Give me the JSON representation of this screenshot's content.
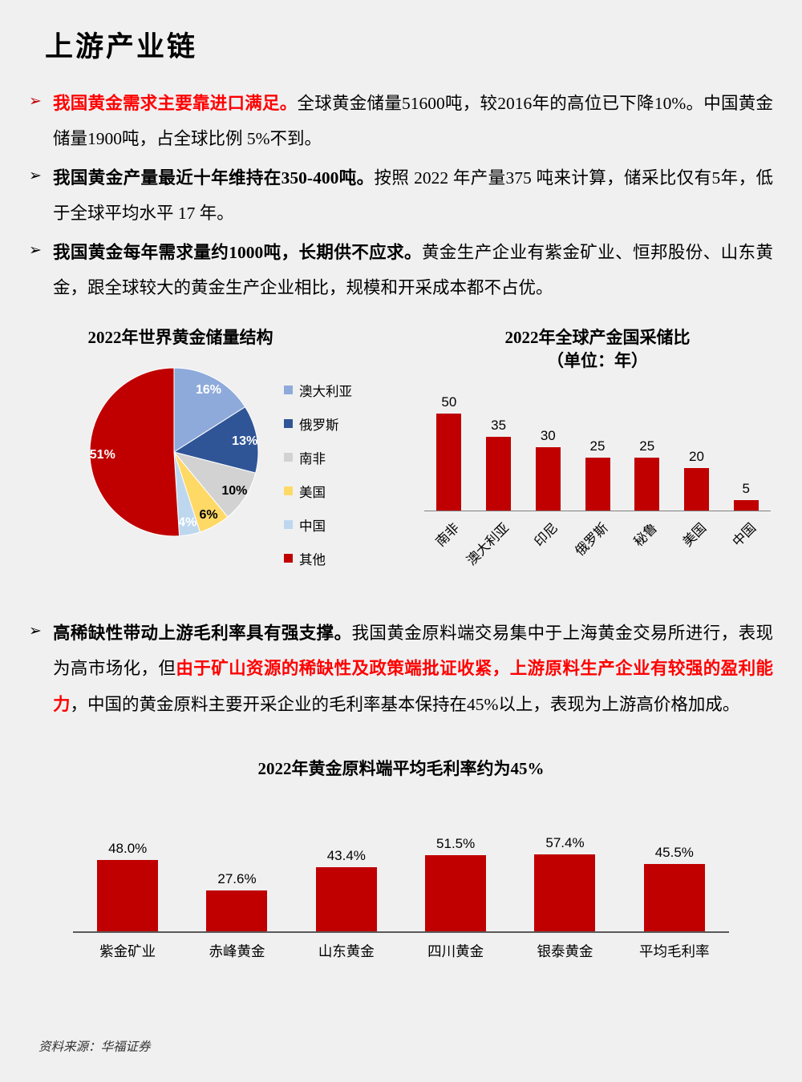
{
  "colors": {
    "page_bg": "#F0F0F1",
    "text": "#000000",
    "red_text": "#FF0000",
    "bar_red": "#C00000"
  },
  "page": {
    "title": "上游产业链",
    "bullet_marker": "➢",
    "source": "资料来源：华福证券"
  },
  "bullets_top": [
    {
      "marker_color": "#C00000",
      "segments": [
        {
          "text": "我国黄金需求主要靠进口满足。",
          "style": "red-bold"
        },
        {
          "text": "全球黄金储量51600吨，较2016年的高位已下降10%。中国黄金储量1900吨，占全球比例 5%不到。",
          "style": "normal"
        }
      ]
    },
    {
      "marker_color": "#000000",
      "segments": [
        {
          "text": "我国黄金产量最近十年维持在350-400吨。",
          "style": "bold"
        },
        {
          "text": "按照 2022 年产量375 吨来计算，储采比仅有5年，低于全球平均水平 17 年。",
          "style": "normal"
        }
      ]
    },
    {
      "marker_color": "#000000",
      "segments": [
        {
          "text": "我国黄金每年需求量约1000吨，长期供不应求。",
          "style": "bold"
        },
        {
          "text": "黄金生产企业有紫金矿业、恒邦股份、山东黄金，跟全球较大的黄金生产企业相比，规模和开采成本都不占优。",
          "style": "normal"
        }
      ]
    }
  ],
  "bullets_bottom": [
    {
      "marker_color": "#000000",
      "segments": [
        {
          "text": "高稀缺性带动上游毛利率具有强支撑。",
          "style": "bold"
        },
        {
          "text": "我国黄金原料端交易集中于上海黄金交易所进行，表现为高市场化，但",
          "style": "normal"
        },
        {
          "text": "由于矿山资源的稀缺性及政策端批证收紧，上游原料生产企业有较强的盈利能力",
          "style": "red-bold"
        },
        {
          "text": "，中国的黄金原料主要开采企业的毛利率基本保持在45%以上，表现为上游高价格加成。",
          "style": "normal"
        }
      ]
    }
  ],
  "chart_data": [
    {
      "type": "pie",
      "title": "2022年世界黄金储量结构",
      "labels": [
        "澳大利亚",
        "俄罗斯",
        "南非",
        "美国",
        "中国",
        "其他"
      ],
      "values": [
        16,
        13,
        10,
        6,
        4,
        51
      ],
      "colors": [
        "#8EAADB",
        "#2F5597",
        "#D2D2D2",
        "#FFD966",
        "#BDD7EE",
        "#C00000"
      ],
      "label_colors": [
        "#FFFFFF",
        "#FFFFFF",
        "#000000",
        "#000000",
        "#FFFFFF",
        "#FFFFFF"
      ],
      "legend_position": "right",
      "start_angle_deg": 0,
      "direction": "clockwise"
    },
    {
      "type": "bar",
      "title": "2022年全球产金国采储比",
      "subtitle": "（单位：年）",
      "categories": [
        "南非",
        "澳大利亚",
        "印尼",
        "俄罗斯",
        "秘鲁",
        "美国",
        "中国"
      ],
      "values": [
        50,
        35,
        30,
        25,
        25,
        20,
        5
      ],
      "bar_color": "#C00000",
      "ylim": [
        0,
        55
      ],
      "grid": false,
      "xlabel": "",
      "ylabel": ""
    },
    {
      "type": "bar",
      "title": "2022年黄金原料端平均毛利率约为45%",
      "categories": [
        "紫金矿业",
        "赤峰黄金",
        "山东黄金",
        "四川黄金",
        "银泰黄金",
        "平均毛利率"
      ],
      "values": [
        48.0,
        27.6,
        43.4,
        51.5,
        57.4,
        45.5
      ],
      "value_labels": [
        "48.0%",
        "27.6%",
        "43.4%",
        "51.5%",
        "57.4%",
        "45.5%"
      ],
      "bar_color": "#C00000",
      "ylim": [
        0,
        65
      ],
      "grid": false,
      "xlabel": "",
      "ylabel": ""
    }
  ]
}
